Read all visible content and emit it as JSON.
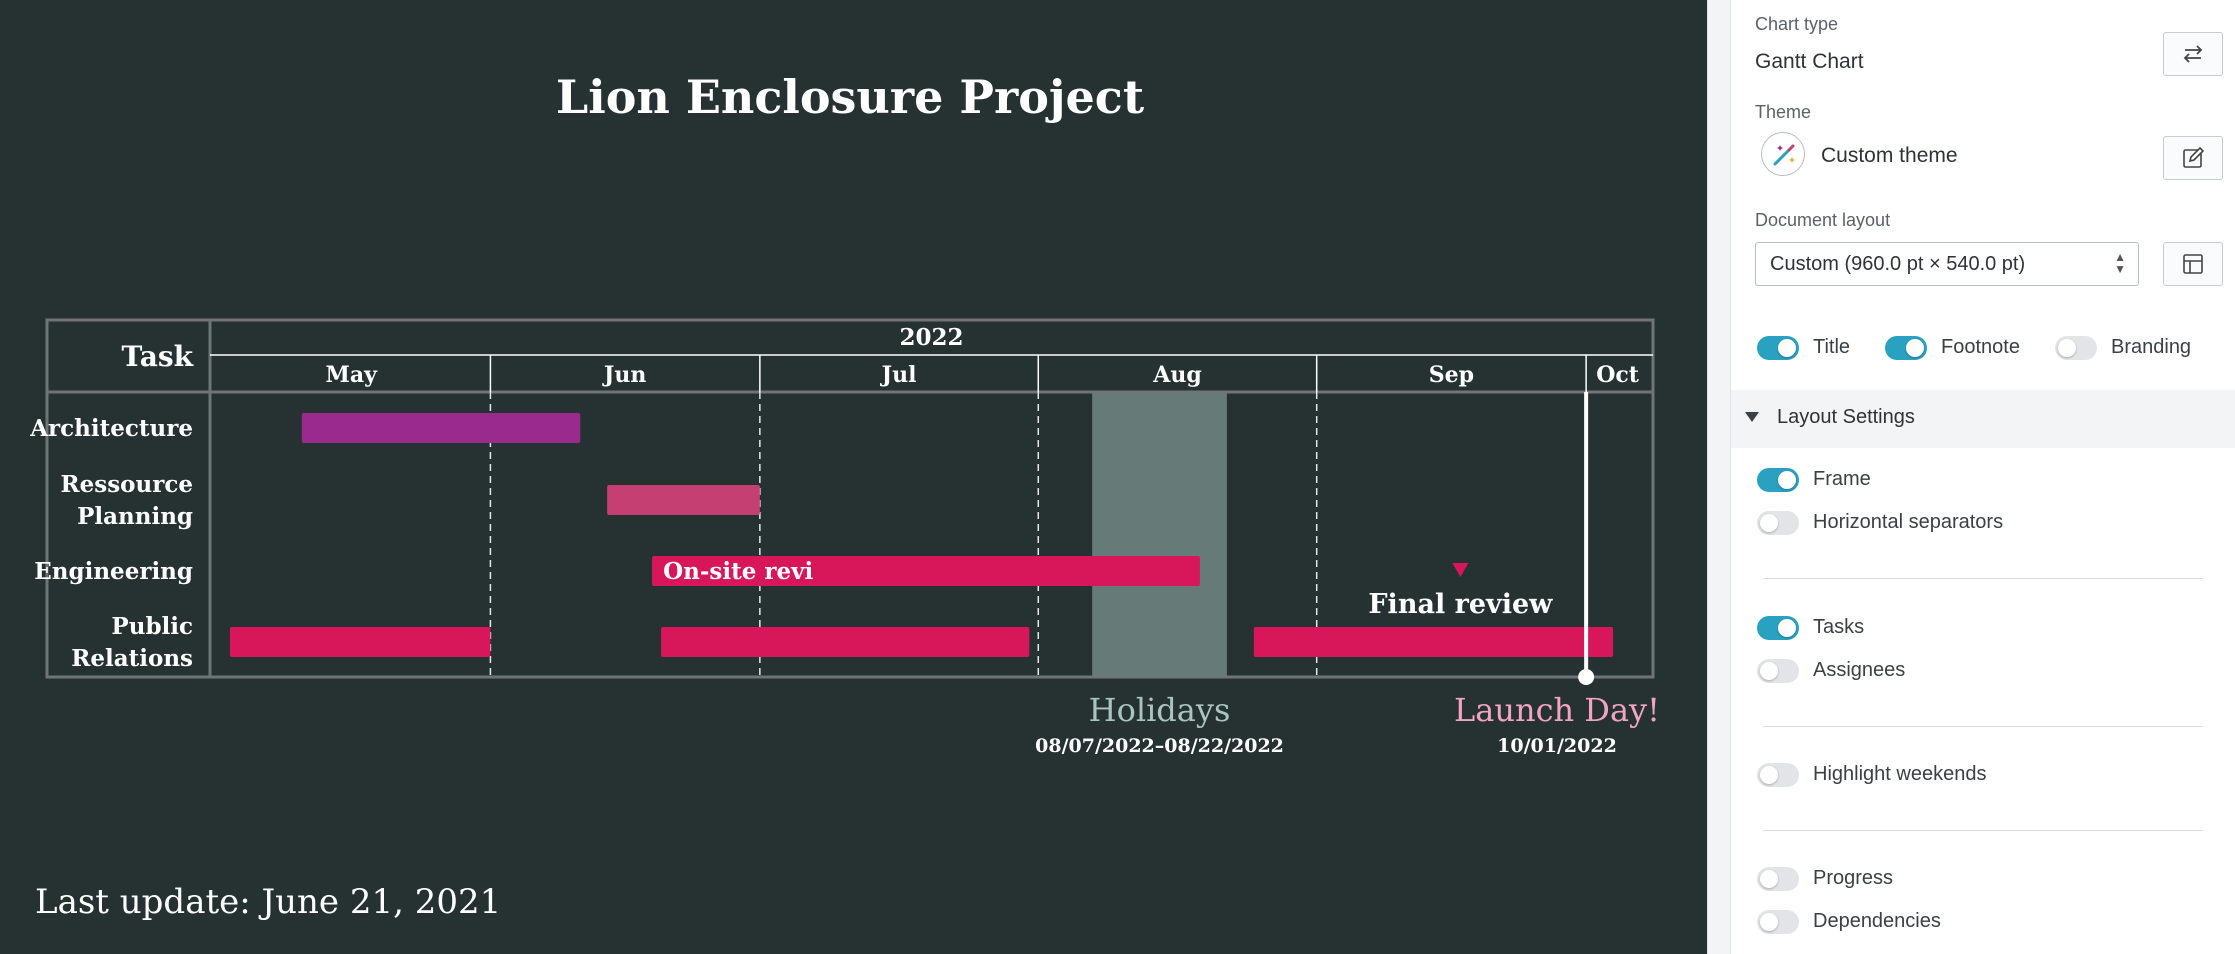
{
  "chart_data": {
    "type": "gantt",
    "title": "Lion Enclosure Project",
    "footnote": "Last update: June 21, 2021",
    "task_column_header": "Task",
    "year_label": "2022",
    "months": [
      "May",
      "Jun",
      "Jul",
      "Aug",
      "Sep",
      "Oct"
    ],
    "range": [
      "2022-05-01",
      "2022-10-08"
    ],
    "tasks": [
      {
        "row": 0,
        "label": [
          "Architecture"
        ]
      },
      {
        "row": 1,
        "label": [
          "Ressource",
          "Planning"
        ]
      },
      {
        "row": 2,
        "label": [
          "Engineering"
        ]
      },
      {
        "row": 3,
        "label": [
          "Public",
          "Relations"
        ]
      }
    ],
    "bars": [
      {
        "row": 0,
        "start": "2022-05-11",
        "end": "2022-06-11",
        "color": "#9b2a8f",
        "label": ""
      },
      {
        "row": 1,
        "start": "2022-06-14",
        "end": "2022-07-01",
        "color": "#c53f73",
        "label": ""
      },
      {
        "row": 2,
        "start": "2022-06-19",
        "end": "2022-07-12",
        "color": "#d8175a",
        "label": "On-site review"
      },
      {
        "row": 2,
        "start": "2022-07-07",
        "end": "2022-08-19",
        "color": "#d8175a",
        "label": ""
      },
      {
        "row": 3,
        "start": "2022-05-03",
        "end": "2022-06-01",
        "color": "#d8175a",
        "label": ""
      },
      {
        "row": 3,
        "start": "2022-06-20",
        "end": "2022-07-31",
        "color": "#d8175a",
        "label": ""
      },
      {
        "row": 3,
        "start": "2022-08-25",
        "end": "2022-10-04",
        "color": "#d8175a",
        "label": ""
      }
    ],
    "milestones": [
      {
        "row": 2,
        "date": "2022-09-17",
        "label": "Final review",
        "color": "#d8175a"
      }
    ],
    "periods": [
      {
        "start": "2022-08-07",
        "end": "2022-08-22",
        "label": "Holidays",
        "dates": "08/07/2022–08/22/2022",
        "color": "#667a77",
        "label_color": "#a9c4c1"
      }
    ],
    "events": [
      {
        "date": "2022-10-01",
        "label": "Launch Day!",
        "date_label": "10/01/2022",
        "color": "#f3a5c0"
      }
    ],
    "frame": true,
    "horizontal_separators": false,
    "background": "#263232"
  },
  "sidebar": {
    "chart_type_label": "Chart type",
    "chart_type_value": "Gantt Chart",
    "theme_label": "Theme",
    "theme_value": "Custom theme",
    "layout_label": "Document layout",
    "layout_value": "Custom (960.0 pt × 540.0 pt)",
    "toggles_top": [
      {
        "label": "Title",
        "on": true
      },
      {
        "label": "Footnote",
        "on": true
      },
      {
        "label": "Branding",
        "on": false
      }
    ],
    "section_title": "Layout Settings",
    "toggles": [
      {
        "label": "Frame",
        "on": true
      },
      {
        "label": "Horizontal separators",
        "on": false
      },
      {
        "label": "Tasks",
        "on": true
      },
      {
        "label": "Assignees",
        "on": false
      },
      {
        "label": "Highlight weekends",
        "on": false
      },
      {
        "label": "Progress",
        "on": false
      },
      {
        "label": "Dependencies",
        "on": false
      }
    ],
    "accent_color": "#2aa1c0",
    "icons": [
      "swap-icon",
      "edit-icon",
      "layout-icon",
      "magic-wand-icon",
      "triangle-down-icon"
    ]
  }
}
